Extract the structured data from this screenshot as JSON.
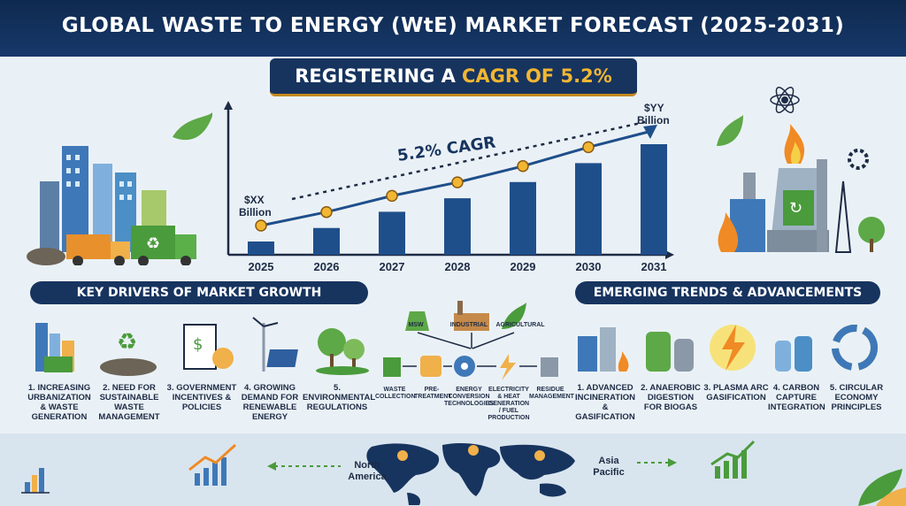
{
  "title": "GLOBAL WASTE TO ENERGY (WtE) MARKET FORECAST (2025-2031)",
  "banner": {
    "prefix": "REGISTERING A",
    "highlight": "CAGR",
    "suffix": "OF 5.2%"
  },
  "chart_data": {
    "type": "bar",
    "categories": [
      "2025",
      "2026",
      "2027",
      "2028",
      "2029",
      "2030",
      "2031"
    ],
    "values": [
      1.0,
      1.05,
      1.11,
      1.16,
      1.22,
      1.29,
      1.36
    ],
    "annotations": {
      "start_line1": "$XX",
      "start_line2": "Billion",
      "end_line1": "$YY",
      "end_line2": "Billion",
      "trend": "5.2% CAGR"
    }
  },
  "drivers": {
    "heading": "KEY DRIVERS OF MARKET GROWTH",
    "items": [
      {
        "l1": "1. INCREASING",
        "l2": "URBANIZATION",
        "l3": "& WASTE",
        "l4": "GENERATION"
      },
      {
        "l1": "2. NEED FOR",
        "l2": "SUSTAINABLE",
        "l3": "WASTE",
        "l4": "MANAGEMENT"
      },
      {
        "l1": "3. GOVERNMENT",
        "l2": "INCENTIVES &",
        "l3": "POLICIES",
        "l4": ""
      },
      {
        "l1": "4. GROWING",
        "l2": "DEMAND FOR",
        "l3": "RENEWABLE",
        "l4": "ENERGY"
      },
      {
        "l1": "5. ENVIRONMENTAL",
        "l2": "REGULATIONS",
        "l3": "",
        "l4": ""
      }
    ]
  },
  "process": {
    "sources": [
      "MSW",
      "INDUSTRIAL",
      "AGRICULTURAL"
    ],
    "steps": [
      {
        "l1": "WASTE",
        "l2": "COLLECTION",
        "l3": "",
        "l4": ""
      },
      {
        "l1": "PRE-",
        "l2": "TREATMENT",
        "l3": "",
        "l4": ""
      },
      {
        "l1": "ENERGY",
        "l2": "CONVERSION",
        "l3": "TECHNOLOGIES",
        "l4": ""
      },
      {
        "l1": "ELECTRICITY",
        "l2": "& HEAT",
        "l3": "GENERATION",
        "l4": "/ FUEL PRODUCTION"
      },
      {
        "l1": "RESIDUE",
        "l2": "MANAGEMENT",
        "l3": "",
        "l4": ""
      }
    ]
  },
  "trends": {
    "heading": "EMERGING TRENDS & ADVANCEMENTS",
    "items": [
      {
        "l1": "1. ADVANCED",
        "l2": "INCINERATION &",
        "l3": "GASIFICATION"
      },
      {
        "l1": "2. ANAEROBIC",
        "l2": "DIGESTION",
        "l3": "FOR BIOGAS"
      },
      {
        "l1": "3. PLASMA ARC",
        "l2": "GASIFICATION",
        "l3": ""
      },
      {
        "l1": "4. CARBON",
        "l2": "CAPTURE",
        "l3": "INTEGRATION"
      },
      {
        "l1": "5. CIRCULAR",
        "l2": "ECONOMY",
        "l3": "PRINCIPLES"
      }
    ]
  },
  "regions": {
    "left_l1": "North",
    "left_l2": "America",
    "right_l1": "Asia",
    "right_l2": "Pacific"
  },
  "colors": {
    "navy": "#17345f",
    "gold": "#f2b632",
    "green": "#4a9b3c",
    "bar": "#1f4f8b"
  }
}
